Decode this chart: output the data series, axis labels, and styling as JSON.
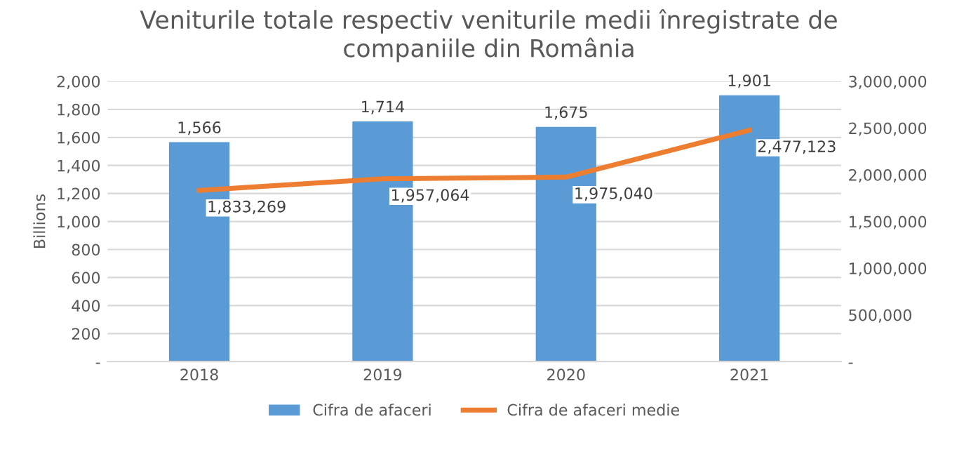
{
  "chart_data": {
    "type": "bar",
    "title": "Veniturile totale respectiv veniturile medii înregistrate de\ncompaniile din România",
    "ylabel": "Billions",
    "categories": [
      "2018",
      "2019",
      "2020",
      "2021"
    ],
    "series": [
      {
        "name": "Cifra de afaceri",
        "color": "#5b9bd5",
        "values": [
          1566,
          1714,
          1675,
          1901
        ],
        "value_labels": [
          "1,566",
          "1,714",
          "1,675",
          "1,901"
        ]
      },
      {
        "name": "Cifra de afaceri medie",
        "type": "line",
        "axis": "y2",
        "color": "#ed7d31",
        "values": [
          1833269,
          1957064,
          1975040,
          2477123
        ],
        "value_labels": [
          "1,833,269",
          "1,957,064",
          "1,975,040",
          "2,477,123"
        ]
      }
    ],
    "ylim": [
      0,
      2000
    ],
    "yticks": [
      {
        "value": 0,
        "label": "-"
      },
      200,
      400,
      600,
      800,
      {
        "value": 1000,
        "label": "1,000"
      },
      {
        "value": 1200,
        "label": "1,200"
      },
      {
        "value": 1400,
        "label": "1,400"
      },
      {
        "value": 1600,
        "label": "1,600"
      },
      {
        "value": 1800,
        "label": "1,800"
      },
      {
        "value": 2000,
        "label": "2,000"
      }
    ],
    "y2lim": [
      0,
      3000000
    ],
    "y2ticks": [
      {
        "value": 0,
        "label": "-"
      },
      {
        "value": 500000,
        "label": "500,000"
      },
      {
        "value": 1000000,
        "label": "1,000,000"
      },
      {
        "value": 1500000,
        "label": "1,500,000"
      },
      {
        "value": 2000000,
        "label": "2,000,000"
      },
      {
        "value": 2500000,
        "label": "2,500,000"
      },
      {
        "value": 3000000,
        "label": "3,000,000"
      }
    ],
    "grid": "y",
    "legend": "bottom",
    "marker": "none",
    "line_style": "solid"
  }
}
